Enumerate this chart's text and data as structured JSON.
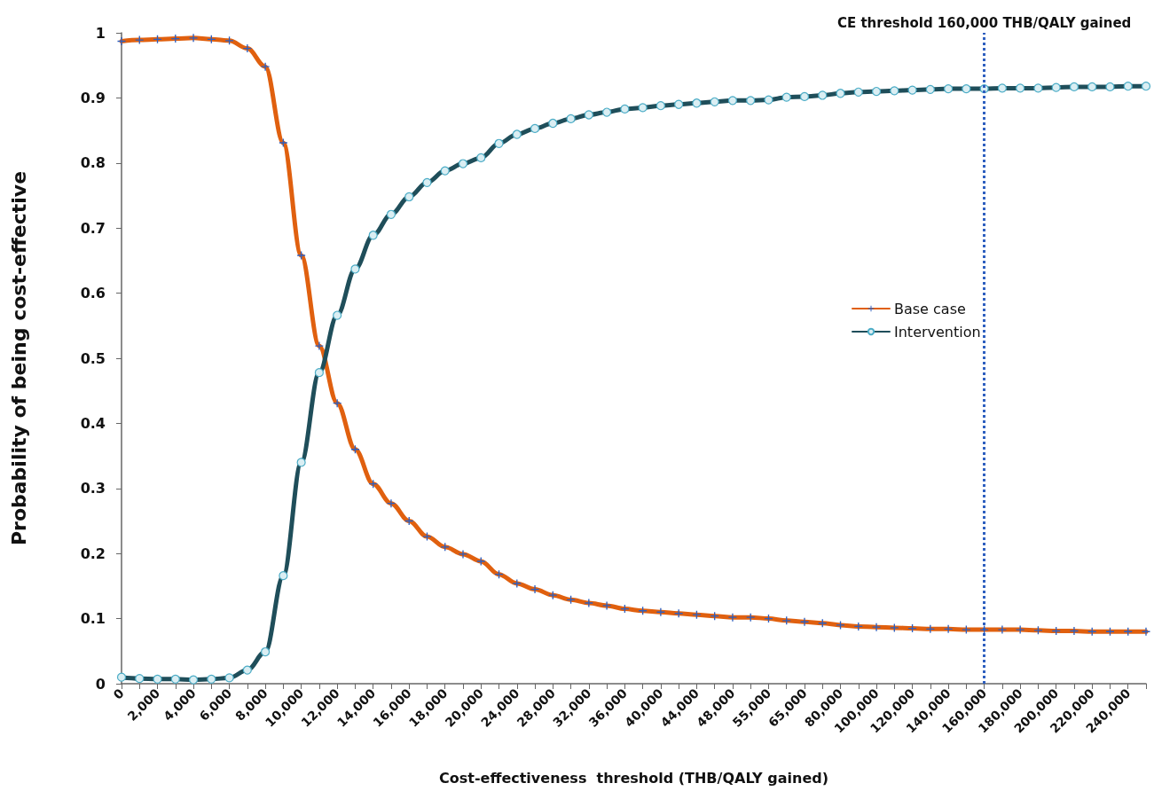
{
  "chart_data": {
    "type": "line",
    "xlabel": "Cost-effectiveness  threshold (THB/QALY gained)",
    "ylabel": "Probability of being cost-effective",
    "categories": [
      "0",
      null,
      "2,000",
      null,
      "4,000",
      null,
      "6,000",
      null,
      "8,000",
      null,
      "10,000",
      null,
      "12,000",
      null,
      "14,000",
      null,
      "16,000",
      null,
      "18,000",
      null,
      "20,000",
      null,
      "24,000",
      null,
      "28,000",
      null,
      "32,000",
      null,
      "36,000",
      null,
      "40,000",
      null,
      "44,000",
      null,
      "48,000",
      null,
      "55,000",
      null,
      "65,000",
      null,
      "80,000",
      null,
      "100,000",
      null,
      "120,000",
      null,
      "140,000",
      null,
      "160,000",
      null,
      "180,000",
      null,
      "200,000",
      null,
      "220,000",
      null,
      "240,000",
      null
    ],
    "series": [
      {
        "name": "Base case",
        "color": "#e0600f",
        "marker": "cross",
        "values": [
          0.987,
          0.989,
          0.99,
          0.991,
          0.992,
          0.99,
          0.988,
          0.976,
          0.948,
          0.831,
          0.658,
          0.519,
          0.431,
          0.36,
          0.307,
          0.277,
          0.25,
          0.226,
          0.21,
          0.199,
          0.188,
          0.168,
          0.154,
          0.145,
          0.136,
          0.129,
          0.124,
          0.12,
          0.115,
          0.112,
          0.11,
          0.108,
          0.106,
          0.104,
          0.102,
          0.102,
          0.1,
          0.097,
          0.095,
          0.093,
          0.09,
          0.088,
          0.087,
          0.086,
          0.085,
          0.084,
          0.084,
          0.083,
          0.083,
          0.083,
          0.083,
          0.082,
          0.081,
          0.081,
          0.08,
          0.08,
          0.08,
          0.08
        ]
      },
      {
        "name": "Intervention",
        "color": "#1f4e5a",
        "marker": "circle",
        "values": [
          0.01,
          0.008,
          0.007,
          0.007,
          0.006,
          0.007,
          0.009,
          0.021,
          0.049,
          0.166,
          0.34,
          0.478,
          0.566,
          0.637,
          0.689,
          0.721,
          0.748,
          0.77,
          0.788,
          0.799,
          0.808,
          0.83,
          0.844,
          0.853,
          0.861,
          0.868,
          0.874,
          0.878,
          0.883,
          0.885,
          0.888,
          0.89,
          0.892,
          0.894,
          0.896,
          0.896,
          0.897,
          0.901,
          0.902,
          0.904,
          0.907,
          0.909,
          0.91,
          0.911,
          0.912,
          0.913,
          0.914,
          0.914,
          0.914,
          0.915,
          0.915,
          0.915,
          0.916,
          0.917,
          0.917,
          0.917,
          0.918,
          0.918
        ]
      }
    ],
    "ylim": [
      0,
      1
    ],
    "yticks": [
      0,
      0.1,
      0.2,
      0.3,
      0.4,
      0.5,
      0.6,
      0.7,
      0.8,
      0.9,
      1
    ],
    "ref_lines": [
      {
        "axis": "x",
        "value": "160,000",
        "label": "CE threshold 160,000 THB/QALY gained",
        "color": "#2e5fbf",
        "line_style": "dotted"
      }
    ],
    "grid": false,
    "legend": "right"
  }
}
